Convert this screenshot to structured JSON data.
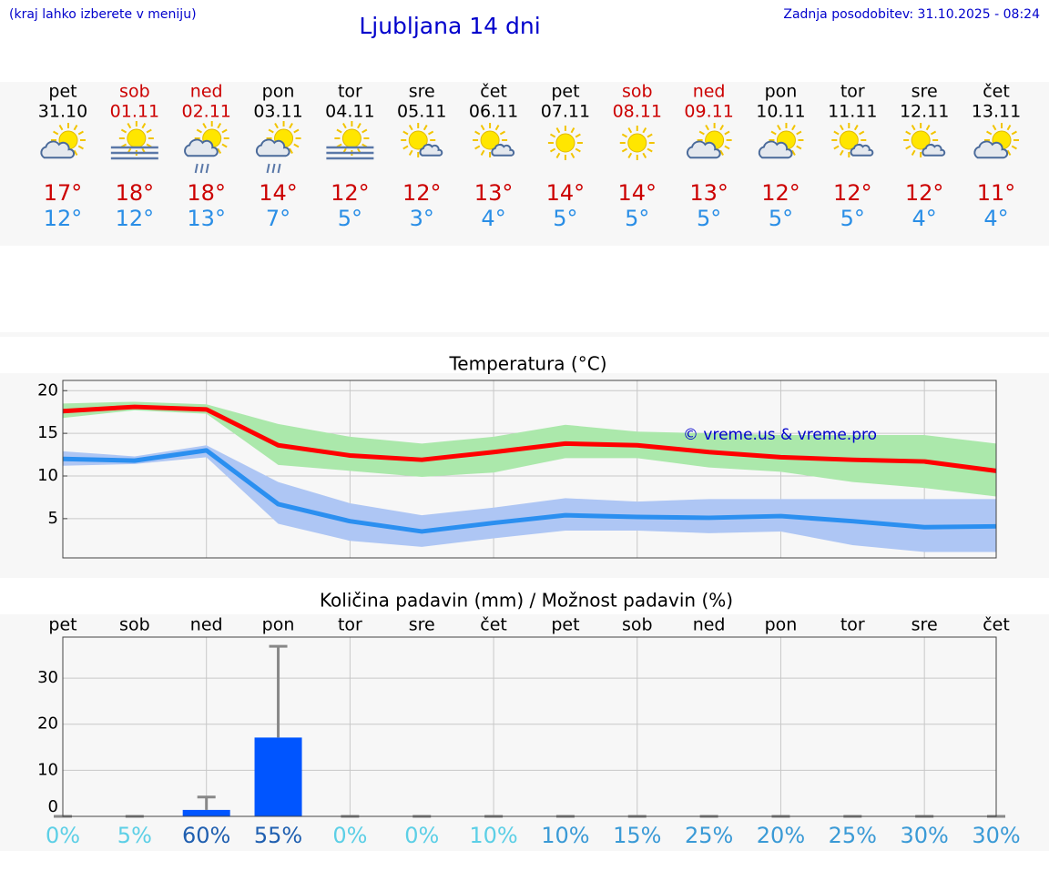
{
  "header": {
    "hint": "(kraj lahko izberete v meniju)",
    "title": "Ljubljana 14 dni",
    "updated": "Zadnja posodobitev: 31.10.2025 - 08:24"
  },
  "forecast": {
    "days": [
      "pet",
      "sob",
      "ned",
      "pon",
      "tor",
      "sre",
      "čet",
      "pet",
      "sob",
      "ned",
      "pon",
      "tor",
      "sre",
      "čet"
    ],
    "dates": [
      "31.10",
      "01.11",
      "02.11",
      "03.11",
      "04.11",
      "05.11",
      "06.11",
      "07.11",
      "08.11",
      "09.11",
      "10.11",
      "11.11",
      "12.11",
      "13.11"
    ],
    "high": [
      "17°",
      "18°",
      "18°",
      "14°",
      "12°",
      "12°",
      "13°",
      "14°",
      "14°",
      "13°",
      "12°",
      "12°",
      "12°",
      "11°"
    ],
    "low": [
      "12°",
      "12°",
      "13°",
      "7°",
      "5°",
      "3°",
      "4°",
      "5°",
      "5°",
      "5°",
      "5°",
      "5°",
      "4°",
      "4°"
    ]
  },
  "chart_data": [
    {
      "type": "line",
      "title": "Temperatura (°C)",
      "annotation": "© vreme.us & vreme.pro",
      "ylim": [
        0.4,
        21.2
      ],
      "yticks": [
        5,
        10,
        15,
        20
      ],
      "grid": true,
      "bands": [
        {
          "color": "#abe8ab",
          "upper": [
            18.5,
            18.7,
            18.4,
            16.1,
            14.6,
            13.8,
            14.6,
            16,
            15.2,
            15,
            14.8,
            14.8,
            14.8,
            13.8
          ],
          "lower": [
            16.8,
            17.7,
            17.3,
            11.3,
            10.6,
            9.9,
            10.4,
            12.1,
            12.1,
            11,
            10.5,
            9.3,
            8.6,
            7.6
          ]
        },
        {
          "color": "#aec6f4",
          "upper": [
            12.9,
            12.3,
            13.6,
            9.3,
            6.8,
            5.4,
            6.3,
            7.4,
            7,
            7.3,
            7.3,
            7.3,
            7.3,
            7.3
          ],
          "lower": [
            11.2,
            11.4,
            12.2,
            4.4,
            2.4,
            1.7,
            2.7,
            3.6,
            3.6,
            3.3,
            3.5,
            1.9,
            1.1,
            1.1
          ]
        }
      ],
      "series": [
        {
          "color": "#ff0000",
          "values": [
            17.6,
            18.1,
            17.8,
            13.6,
            12.4,
            11.9,
            12.8,
            13.8,
            13.6,
            12.8,
            12.2,
            11.9,
            11.7,
            10.6
          ]
        },
        {
          "color": "#2b8ff0",
          "values": [
            12,
            11.8,
            13,
            6.7,
            4.7,
            3.5,
            4.5,
            5.4,
            5.2,
            5.1,
            5.3,
            4.7,
            4,
            4.1
          ]
        }
      ]
    },
    {
      "type": "bar",
      "title": "Količina padavin (mm) / Možnost padavin (%)",
      "categories": [
        "pet",
        "sob",
        "ned",
        "pon",
        "tor",
        "sre",
        "čet",
        "pet",
        "sob",
        "ned",
        "pon",
        "tor",
        "sre",
        "čet"
      ],
      "color": "#0055ff",
      "error_color": "#888888",
      "values": [
        0,
        0,
        1.4,
        17.1,
        0,
        0,
        0,
        0,
        0,
        0,
        0,
        0,
        0,
        0
      ],
      "upper": [
        0,
        0,
        4.2,
        36.9,
        0,
        0,
        0,
        0,
        0,
        0,
        0,
        0,
        0,
        0
      ],
      "ylim": [
        0,
        38.9
      ],
      "yticks": [
        0,
        10,
        20,
        30
      ],
      "grid": true,
      "probability": [
        0,
        5,
        60,
        55,
        0,
        0,
        10,
        10,
        15,
        25,
        20,
        25,
        30,
        30
      ],
      "probability_labels": [
        "0%",
        "5%",
        "60%",
        "55%",
        "0%",
        "0%",
        "10%",
        "10%",
        "15%",
        "25%",
        "20%",
        "25%",
        "30%",
        "30%"
      ],
      "probability_colors": [
        "#5ccfe6",
        "#5ccfe6",
        "#1f5fb0",
        "#1f5fb0",
        "#5ccfe6",
        "#5ccfe6",
        "#5ccfe6",
        "#3a9ad6",
        "#3a9ad6",
        "#3a9ad6",
        "#3a9ad6",
        "#3a9ad6",
        "#3a9ad6",
        "#3a9ad6"
      ]
    }
  ]
}
